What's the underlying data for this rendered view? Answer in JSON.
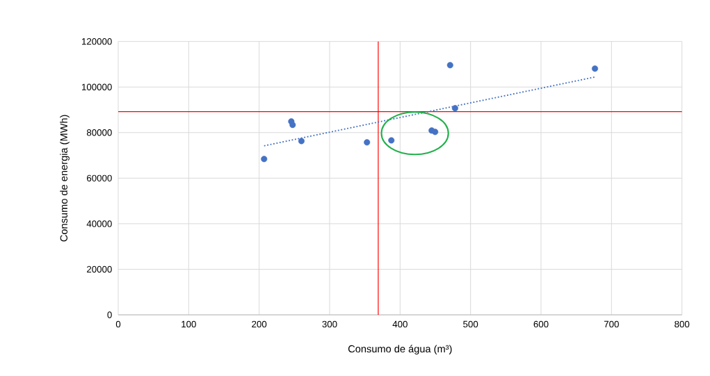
{
  "chart_data": {
    "type": "scatter",
    "xlabel": "Consumo de água (m³)",
    "ylabel": "Consumo de energia (MWh)",
    "xlim": [
      0,
      800
    ],
    "ylim": [
      0,
      120000
    ],
    "xticks": [
      0,
      100,
      200,
      300,
      400,
      500,
      600,
      700,
      800
    ],
    "yticks": [
      0,
      20000,
      40000,
      60000,
      80000,
      100000,
      120000
    ],
    "grid": true,
    "marker": "circle",
    "series": [
      {
        "color": "#4472c4",
        "x": [
          207,
          245.6,
          247.5,
          260,
          353,
          387.6,
          444.8,
          449.7,
          471,
          478,
          676.5
        ],
        "values": [
          68400,
          84900,
          83400,
          76300,
          75700,
          76600,
          80900,
          80300,
          109600,
          90700,
          108100
        ]
      },
      {
        "type": "line",
        "line_style": "dotted",
        "marker": "none",
        "color": "#4472c4",
        "x": [
          207,
          676.5
        ],
        "values": [
          74200,
          104400
        ]
      }
    ],
    "ref_lines": [
      {
        "axis": "x",
        "value": 369,
        "color": "#ff0000"
      },
      {
        "axis": "y",
        "value": 89200,
        "color": "#ff0000"
      }
    ]
  }
}
